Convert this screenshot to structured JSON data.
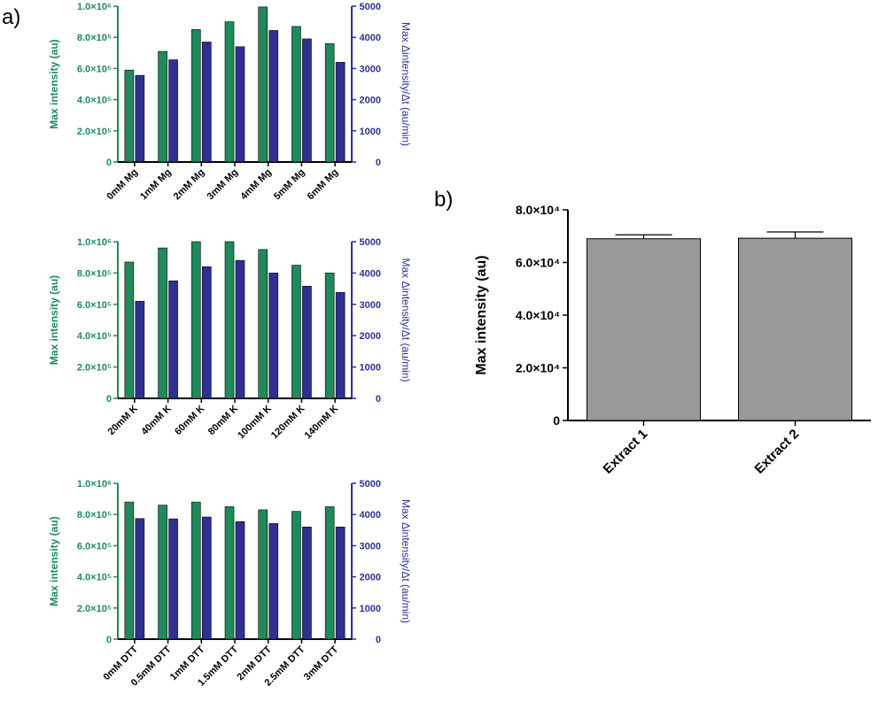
{
  "panel_labels": {
    "a": "a)",
    "b": "b)"
  },
  "colors": {
    "left_series": "#1f8a5b",
    "right_series": "#2e3192",
    "bar_b": "#999999"
  },
  "chart_data": [
    {
      "type": "bar",
      "panel": "a",
      "ylabel": "Max intensity  (au)",
      "y2label": "Max Δintensity/Δt (au/min)",
      "ylim": [
        0,
        1000000
      ],
      "y2lim": [
        0,
        5000
      ],
      "yticks": [
        "0",
        "2.0×10⁵",
        "4.0×10⁵",
        "6.0×10⁵",
        "8.0×10⁵",
        "1.0×10⁶"
      ],
      "y2ticks": [
        "0",
        "1000",
        "2000",
        "3000",
        "4000",
        "5000"
      ],
      "categories": [
        "0mM Mg",
        "1mM Mg",
        "2mM Mg",
        "3mM Mg",
        "4mM Mg",
        "5mM Mg",
        "6mM Mg"
      ],
      "series": [
        {
          "name": "Max intensity",
          "axis": "left",
          "values": [
            590000,
            710000,
            850000,
            900000,
            995000,
            870000,
            760000
          ]
        },
        {
          "name": "Max Δintensity/Δt",
          "axis": "right",
          "values": [
            2780,
            3280,
            3850,
            3700,
            4220,
            3950,
            3200
          ]
        }
      ]
    },
    {
      "type": "bar",
      "panel": "a",
      "ylabel": "Max intensity  (au)",
      "y2label": "Max Δintensity/Δt (au/min)",
      "ylim": [
        0,
        1000000
      ],
      "y2lim": [
        0,
        5000
      ],
      "yticks": [
        "0",
        "2.0×10⁵",
        "4.0×10⁵",
        "6.0×10⁵",
        "8.0×10⁵",
        "1.0×10⁶"
      ],
      "y2ticks": [
        "0",
        "1000",
        "2000",
        "3000",
        "4000",
        "5000"
      ],
      "categories": [
        "20mM K",
        "40mM K",
        "60mM K",
        "80mM K",
        "100mM K",
        "120mM K",
        "140mM K"
      ],
      "series": [
        {
          "name": "Max intensity",
          "axis": "left",
          "values": [
            870000,
            960000,
            1000000,
            1000000,
            950000,
            850000,
            800000
          ]
        },
        {
          "name": "Max Δintensity/Δt",
          "axis": "right",
          "values": [
            3100,
            3750,
            4200,
            4400,
            4000,
            3580,
            3380
          ]
        }
      ]
    },
    {
      "type": "bar",
      "panel": "a",
      "ylabel": "Max intensity  (au)",
      "y2label": "Max Δintensity/Δt (au/min)",
      "ylim": [
        0,
        1000000
      ],
      "y2lim": [
        0,
        5000
      ],
      "yticks": [
        "0",
        "2.0×10⁵",
        "4.0×10⁵",
        "6.0×10⁵",
        "8.0×10⁵",
        "1.0×10⁶"
      ],
      "y2ticks": [
        "0",
        "1000",
        "2000",
        "3000",
        "4000",
        "5000"
      ],
      "categories": [
        "0mM DTT",
        "0.5mM DTT",
        "1mM DTT",
        "1.5mM DTT",
        "2mM DTT",
        "2.5mM DTT",
        "3mM DTT"
      ],
      "series": [
        {
          "name": "Max intensity",
          "axis": "left",
          "values": [
            880000,
            860000,
            880000,
            850000,
            830000,
            820000,
            850000
          ]
        },
        {
          "name": "Max Δintensity/Δt",
          "axis": "right",
          "values": [
            3870,
            3860,
            3920,
            3770,
            3710,
            3600,
            3600
          ]
        }
      ]
    },
    {
      "type": "bar",
      "panel": "b",
      "ylabel": "Max intensity  (au)",
      "ylim": [
        0,
        80000
      ],
      "yticks": [
        "0",
        "2.0×10⁴",
        "4.0×10⁴",
        "6.0×10⁴",
        "8.0×10⁴"
      ],
      "categories": [
        "Extract 1",
        "Extract 2"
      ],
      "values": [
        69000,
        69200
      ],
      "errors": [
        1500,
        2400
      ]
    }
  ]
}
